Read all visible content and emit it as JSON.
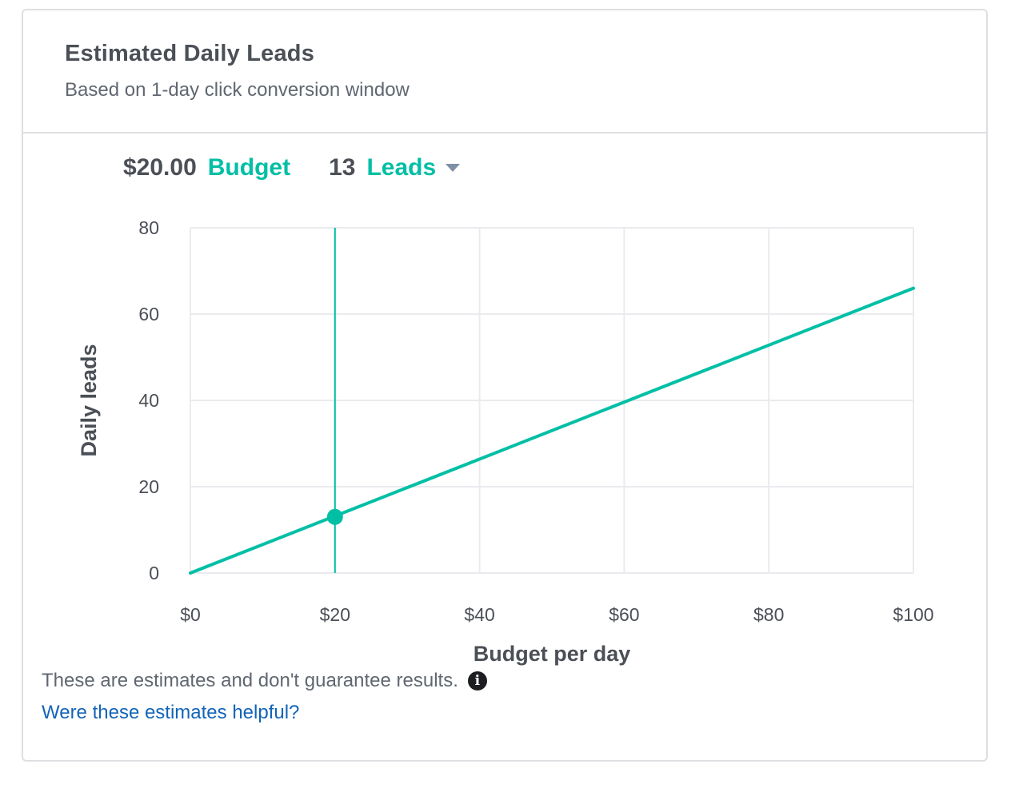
{
  "card": {
    "title": "Estimated Daily Leads",
    "subtitle": "Based on 1-day click conversion window"
  },
  "summary": {
    "budget_value": "$20.00",
    "budget_label": "Budget",
    "leads_value": "13",
    "leads_label": "Leads"
  },
  "colors": {
    "accent": "#00bfa5",
    "text_dark": "#4b4f56",
    "text_muted": "#606770",
    "link": "#1264b8",
    "grid": "#e9ebee"
  },
  "chart_data": {
    "type": "line",
    "xlabel": "Budget per day",
    "ylabel": "Daily leads",
    "xlim": [
      0,
      100
    ],
    "ylim": [
      0,
      80
    ],
    "x_ticks": [
      0,
      20,
      40,
      60,
      80,
      100
    ],
    "x_tick_labels": [
      "$0",
      "$20",
      "$40",
      "$60",
      "$80",
      "$100"
    ],
    "y_ticks": [
      0,
      20,
      40,
      60,
      80
    ],
    "y_tick_labels": [
      "0",
      "20",
      "40",
      "60",
      "80"
    ],
    "grid": true,
    "series": [
      {
        "x": [
          0,
          100
        ],
        "y": [
          0,
          66
        ]
      }
    ],
    "marker": {
      "x": 20,
      "y": 13
    },
    "vertical_line_x": 20
  },
  "footer": {
    "disclaimer": "These are estimates and don't guarantee results.",
    "info_icon": "info-icon",
    "helpful_link": "Were these estimates helpful?"
  }
}
